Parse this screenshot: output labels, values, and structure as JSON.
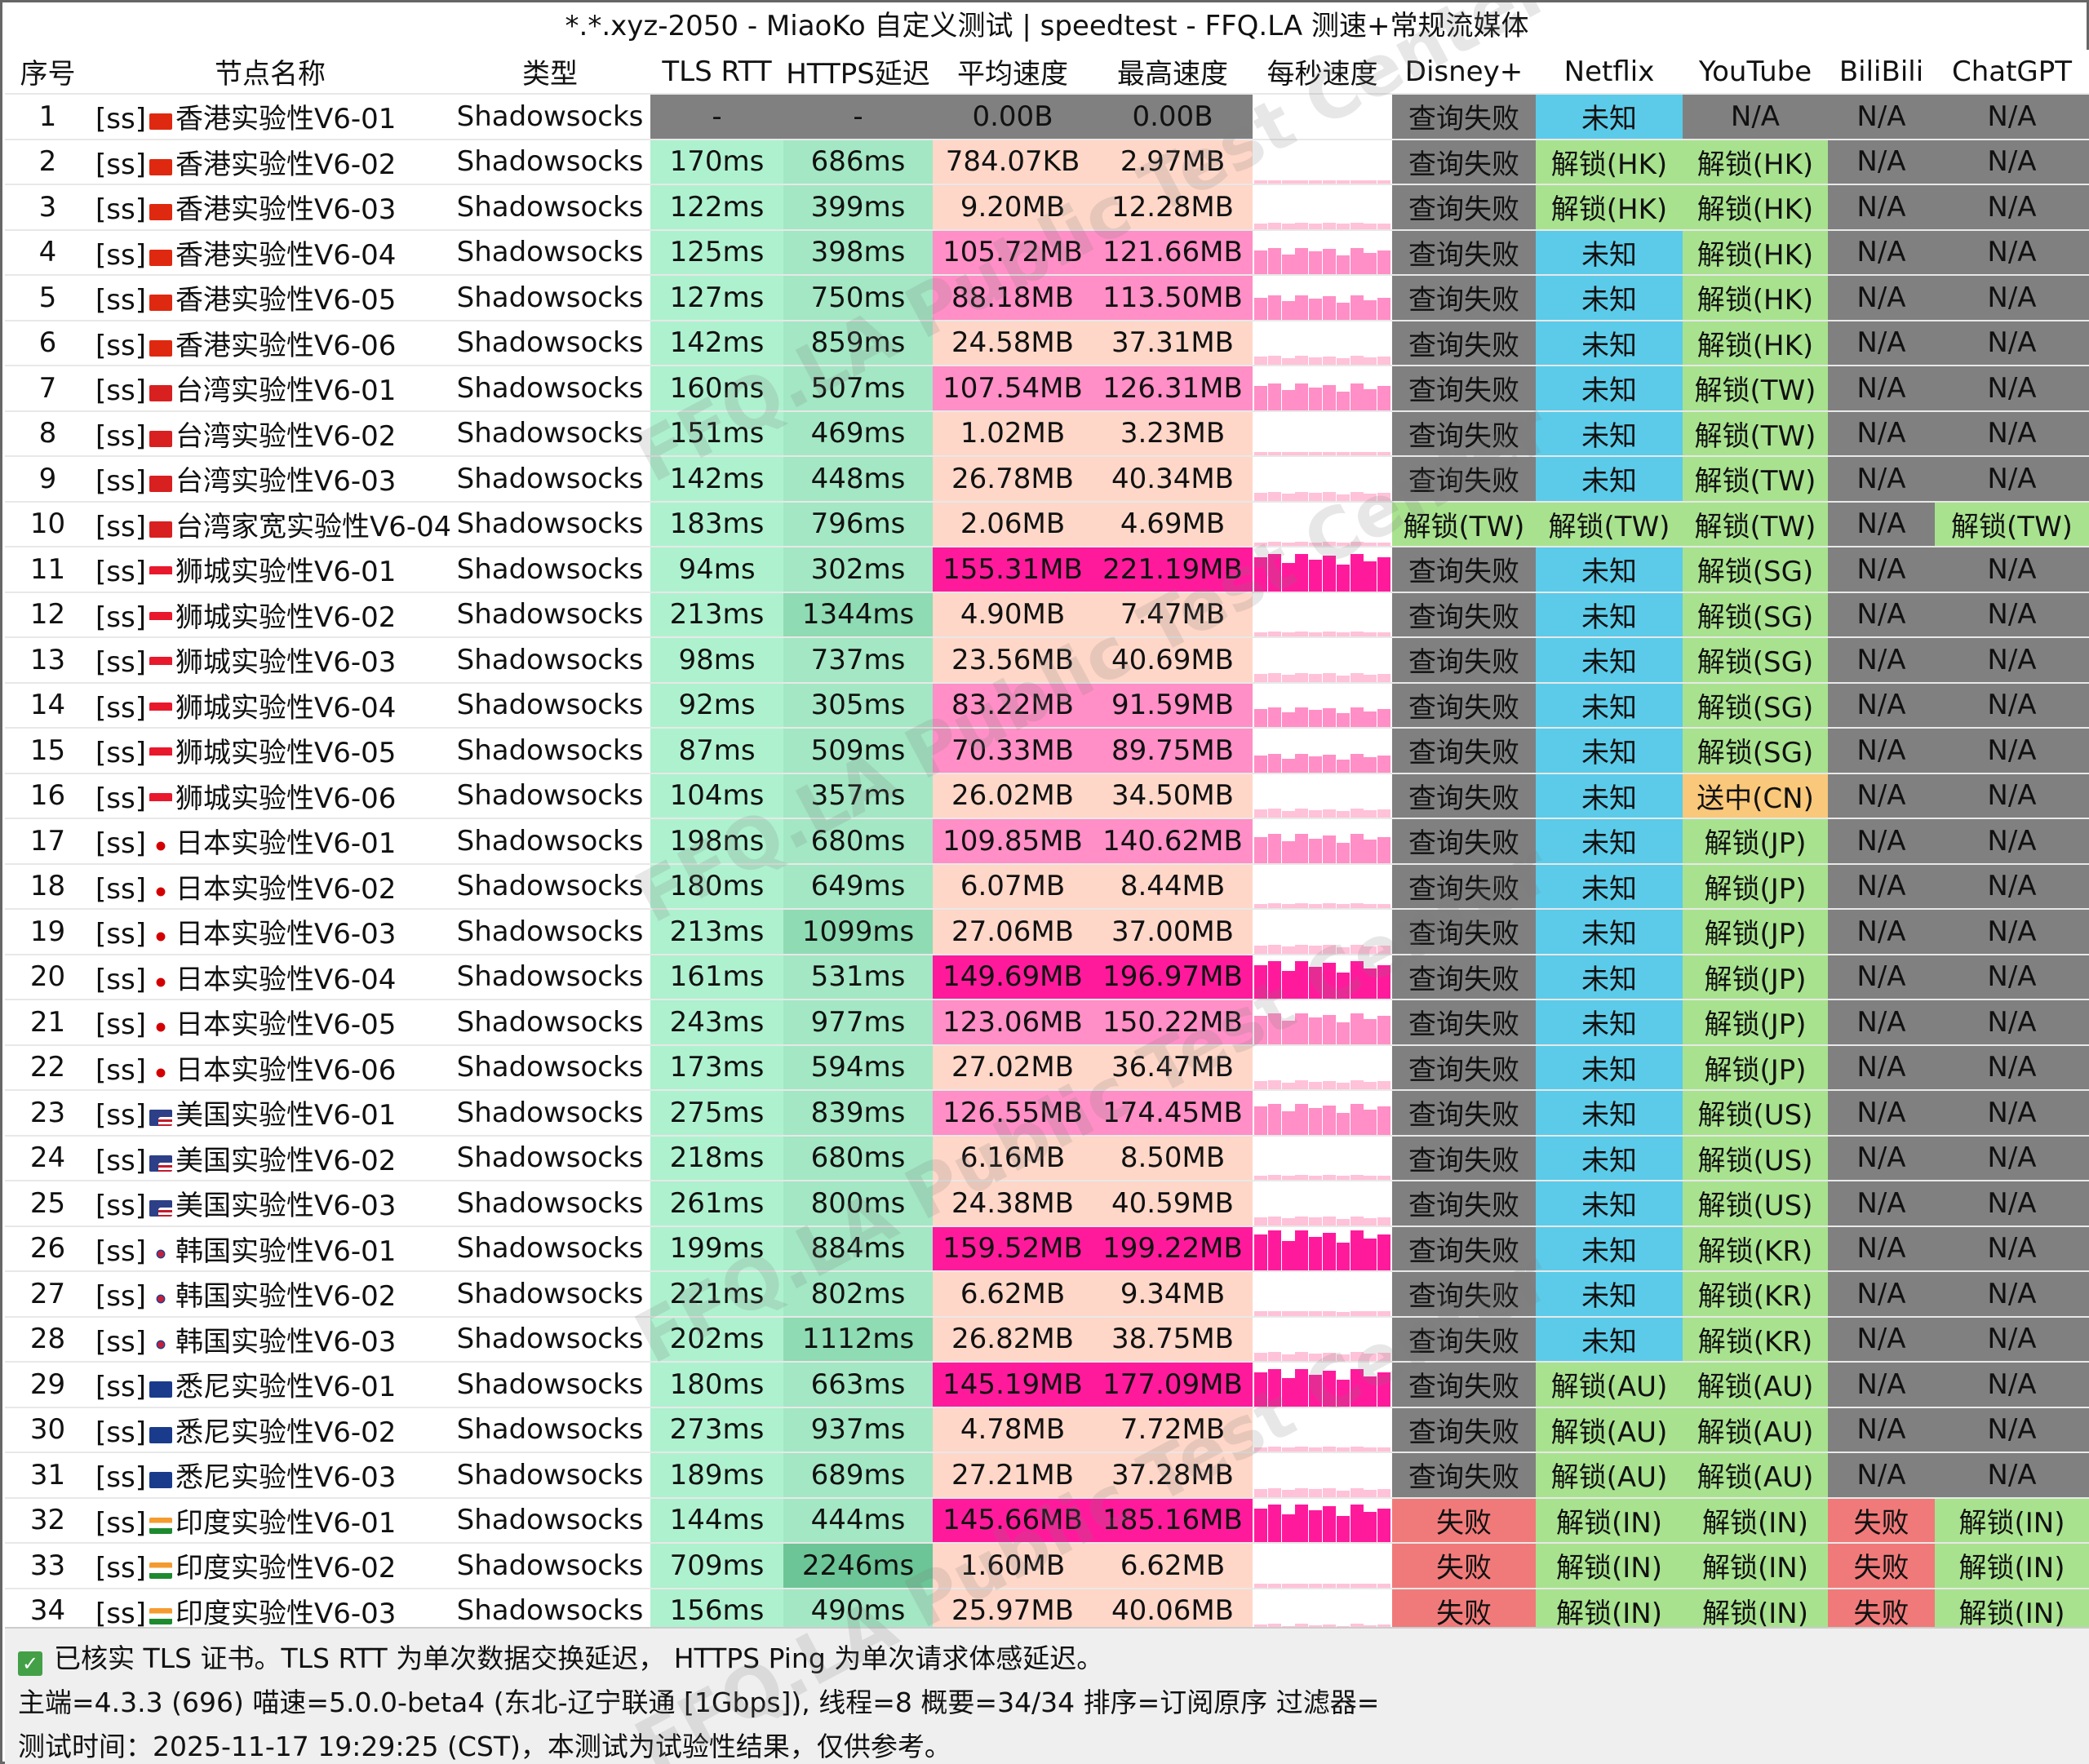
{
  "title": "*.*.xyz-2050 - MiaoKo 自定义测试 | speedtest - FFQ.LA 测速+常规流媒体",
  "columns": [
    "序号",
    "节点名称",
    "类型",
    "TLS RTT",
    "HTTPS延迟",
    "平均速度",
    "最高速度",
    "每秒速度",
    "Disney+",
    "Netflix",
    "YouTube",
    "BiliBili",
    "ChatGPT"
  ],
  "colors": {
    "gray": "#808080",
    "fail": "#f07a7a",
    "unlock": "#a8e28e",
    "unknown": "#5bcbe9",
    "sent": "#f9c87a",
    "tls": "#aef1cf",
    "https_light": "#a3e7c4",
    "https_mid": "#8fdbb3",
    "https_dark": "#6cc596",
    "speed_light": "#ffd7c8",
    "speed_mid": "#ff8fc6",
    "speed_hot": "#ff1a9c"
  },
  "rows": [
    {
      "no": "1",
      "proto": "[ss]",
      "flag": "hk",
      "name": "香港实验性V6-01",
      "type": "Shadowsocks",
      "tls": "-",
      "https": "-",
      "avg": "0.00B",
      "max": "0.00B",
      "disney": "查询失败",
      "netflix": "未知",
      "youtube": "N/A",
      "bili": "N/A",
      "gpt": "N/A",
      "level": 0
    },
    {
      "no": "2",
      "proto": "[ss]",
      "flag": "hk",
      "name": "香港实验性V6-02",
      "type": "Shadowsocks",
      "tls": "170ms",
      "https": "686ms",
      "avg": "784.07KB",
      "max": "2.97MB",
      "disney": "查询失败",
      "netflix": "解锁(HK)",
      "youtube": "解锁(HK)",
      "bili": "N/A",
      "gpt": "N/A",
      "level": 0.02
    },
    {
      "no": "3",
      "proto": "[ss]",
      "flag": "hk",
      "name": "香港实验性V6-03",
      "type": "Shadowsocks",
      "tls": "122ms",
      "https": "399ms",
      "avg": "9.20MB",
      "max": "12.28MB",
      "disney": "查询失败",
      "netflix": "解锁(HK)",
      "youtube": "解锁(HK)",
      "bili": "N/A",
      "gpt": "N/A",
      "level": 0.08
    },
    {
      "no": "4",
      "proto": "[ss]",
      "flag": "hk",
      "name": "香港实验性V6-04",
      "type": "Shadowsocks",
      "tls": "125ms",
      "https": "398ms",
      "avg": "105.72MB",
      "max": "121.66MB",
      "disney": "查询失败",
      "netflix": "未知",
      "youtube": "解锁(HK)",
      "bili": "N/A",
      "gpt": "N/A",
      "level": 0.6
    },
    {
      "no": "5",
      "proto": "[ss]",
      "flag": "hk",
      "name": "香港实验性V6-05",
      "type": "Shadowsocks",
      "tls": "127ms",
      "https": "750ms",
      "avg": "88.18MB",
      "max": "113.50MB",
      "disney": "查询失败",
      "netflix": "未知",
      "youtube": "解锁(HK)",
      "bili": "N/A",
      "gpt": "N/A",
      "level": 0.55
    },
    {
      "no": "6",
      "proto": "[ss]",
      "flag": "hk",
      "name": "香港实验性V6-06",
      "type": "Shadowsocks",
      "tls": "142ms",
      "https": "859ms",
      "avg": "24.58MB",
      "max": "37.31MB",
      "disney": "查询失败",
      "netflix": "未知",
      "youtube": "解锁(HK)",
      "bili": "N/A",
      "gpt": "N/A",
      "level": 0.2
    },
    {
      "no": "7",
      "proto": "[ss]",
      "flag": "tw",
      "name": "台湾实验性V6-01",
      "type": "Shadowsocks",
      "tls": "160ms",
      "https": "507ms",
      "avg": "107.54MB",
      "max": "126.31MB",
      "disney": "查询失败",
      "netflix": "未知",
      "youtube": "解锁(TW)",
      "bili": "N/A",
      "gpt": "N/A",
      "level": 0.6
    },
    {
      "no": "8",
      "proto": "[ss]",
      "flag": "tw",
      "name": "台湾实验性V6-02",
      "type": "Shadowsocks",
      "tls": "151ms",
      "https": "469ms",
      "avg": "1.02MB",
      "max": "3.23MB",
      "disney": "查询失败",
      "netflix": "未知",
      "youtube": "解锁(TW)",
      "bili": "N/A",
      "gpt": "N/A",
      "level": 0.02
    },
    {
      "no": "9",
      "proto": "[ss]",
      "flag": "tw",
      "name": "台湾实验性V6-03",
      "type": "Shadowsocks",
      "tls": "142ms",
      "https": "448ms",
      "avg": "26.78MB",
      "max": "40.34MB",
      "disney": "查询失败",
      "netflix": "未知",
      "youtube": "解锁(TW)",
      "bili": "N/A",
      "gpt": "N/A",
      "level": 0.2
    },
    {
      "no": "10",
      "proto": "[ss]",
      "flag": "tw",
      "name": "台湾家宽实验性V6-04",
      "type": "Shadowsocks",
      "tls": "183ms",
      "https": "796ms",
      "avg": "2.06MB",
      "max": "4.69MB",
      "disney": "解锁(TW)",
      "netflix": "解锁(TW)",
      "youtube": "解锁(TW)",
      "bili": "N/A",
      "gpt": "解锁(TW)",
      "level": 0.03
    },
    {
      "no": "11",
      "proto": "[ss]",
      "flag": "sg",
      "name": "狮城实验性V6-01",
      "type": "Shadowsocks",
      "tls": "94ms",
      "https": "302ms",
      "avg": "155.31MB",
      "max": "221.19MB",
      "disney": "查询失败",
      "netflix": "未知",
      "youtube": "解锁(SG)",
      "bili": "N/A",
      "gpt": "N/A",
      "level": 0.85
    },
    {
      "no": "12",
      "proto": "[ss]",
      "flag": "sg",
      "name": "狮城实验性V6-02",
      "type": "Shadowsocks",
      "tls": "213ms",
      "https": "1344ms",
      "avg": "4.90MB",
      "max": "7.47MB",
      "disney": "查询失败",
      "netflix": "未知",
      "youtube": "解锁(SG)",
      "bili": "N/A",
      "gpt": "N/A",
      "level": 0.05
    },
    {
      "no": "13",
      "proto": "[ss]",
      "flag": "sg",
      "name": "狮城实验性V6-03",
      "type": "Shadowsocks",
      "tls": "98ms",
      "https": "737ms",
      "avg": "23.56MB",
      "max": "40.69MB",
      "disney": "查询失败",
      "netflix": "未知",
      "youtube": "解锁(SG)",
      "bili": "N/A",
      "gpt": "N/A",
      "level": 0.2
    },
    {
      "no": "14",
      "proto": "[ss]",
      "flag": "sg",
      "name": "狮城实验性V6-04",
      "type": "Shadowsocks",
      "tls": "92ms",
      "https": "305ms",
      "avg": "83.22MB",
      "max": "91.59MB",
      "disney": "查询失败",
      "netflix": "未知",
      "youtube": "解锁(SG)",
      "bili": "N/A",
      "gpt": "N/A",
      "level": 0.45
    },
    {
      "no": "15",
      "proto": "[ss]",
      "flag": "sg",
      "name": "狮城实验性V6-05",
      "type": "Shadowsocks",
      "tls": "87ms",
      "https": "509ms",
      "avg": "70.33MB",
      "max": "89.75MB",
      "disney": "查询失败",
      "netflix": "未知",
      "youtube": "解锁(SG)",
      "bili": "N/A",
      "gpt": "N/A",
      "level": 0.42
    },
    {
      "no": "16",
      "proto": "[ss]",
      "flag": "sg",
      "name": "狮城实验性V6-06",
      "type": "Shadowsocks",
      "tls": "104ms",
      "https": "357ms",
      "avg": "26.02MB",
      "max": "34.50MB",
      "disney": "查询失败",
      "netflix": "未知",
      "youtube": "送中(CN)",
      "bili": "N/A",
      "gpt": "N/A",
      "level": 0.2
    },
    {
      "no": "17",
      "proto": "[ss]",
      "flag": "jp",
      "name": "日本实验性V6-01",
      "type": "Shadowsocks",
      "tls": "198ms",
      "https": "680ms",
      "avg": "109.85MB",
      "max": "140.62MB",
      "disney": "查询失败",
      "netflix": "未知",
      "youtube": "解锁(JP)",
      "bili": "N/A",
      "gpt": "N/A",
      "level": 0.65
    },
    {
      "no": "18",
      "proto": "[ss]",
      "flag": "jp",
      "name": "日本实验性V6-02",
      "type": "Shadowsocks",
      "tls": "180ms",
      "https": "649ms",
      "avg": "6.07MB",
      "max": "8.44MB",
      "disney": "查询失败",
      "netflix": "未知",
      "youtube": "解锁(JP)",
      "bili": "N/A",
      "gpt": "N/A",
      "level": 0.05
    },
    {
      "no": "19",
      "proto": "[ss]",
      "flag": "jp",
      "name": "日本实验性V6-03",
      "type": "Shadowsocks",
      "tls": "213ms",
      "https": "1099ms",
      "avg": "27.06MB",
      "max": "37.00MB",
      "disney": "查询失败",
      "netflix": "未知",
      "youtube": "解锁(JP)",
      "bili": "N/A",
      "gpt": "N/A",
      "level": 0.2
    },
    {
      "no": "20",
      "proto": "[ss]",
      "flag": "jp",
      "name": "日本实验性V6-04",
      "type": "Shadowsocks",
      "tls": "161ms",
      "https": "531ms",
      "avg": "149.69MB",
      "max": "196.97MB",
      "disney": "查询失败",
      "netflix": "未知",
      "youtube": "解锁(JP)",
      "bili": "N/A",
      "gpt": "N/A",
      "level": 0.85
    },
    {
      "no": "21",
      "proto": "[ss]",
      "flag": "jp",
      "name": "日本实验性V6-05",
      "type": "Shadowsocks",
      "tls": "243ms",
      "https": "977ms",
      "avg": "123.06MB",
      "max": "150.22MB",
      "disney": "查询失败",
      "netflix": "未知",
      "youtube": "解锁(JP)",
      "bili": "N/A",
      "gpt": "N/A",
      "level": 0.7
    },
    {
      "no": "22",
      "proto": "[ss]",
      "flag": "jp",
      "name": "日本实验性V6-06",
      "type": "Shadowsocks",
      "tls": "173ms",
      "https": "594ms",
      "avg": "27.02MB",
      "max": "36.47MB",
      "disney": "查询失败",
      "netflix": "未知",
      "youtube": "解锁(JP)",
      "bili": "N/A",
      "gpt": "N/A",
      "level": 0.2
    },
    {
      "no": "23",
      "proto": "[ss]",
      "flag": "us",
      "name": "美国实验性V6-01",
      "type": "Shadowsocks",
      "tls": "275ms",
      "https": "839ms",
      "avg": "126.55MB",
      "max": "174.45MB",
      "disney": "查询失败",
      "netflix": "未知",
      "youtube": "解锁(US)",
      "bili": "N/A",
      "gpt": "N/A",
      "level": 0.7
    },
    {
      "no": "24",
      "proto": "[ss]",
      "flag": "us",
      "name": "美国实验性V6-02",
      "type": "Shadowsocks",
      "tls": "218ms",
      "https": "680ms",
      "avg": "6.16MB",
      "max": "8.50MB",
      "disney": "查询失败",
      "netflix": "未知",
      "youtube": "解锁(US)",
      "bili": "N/A",
      "gpt": "N/A",
      "level": 0.05
    },
    {
      "no": "25",
      "proto": "[ss]",
      "flag": "us",
      "name": "美国实验性V6-03",
      "type": "Shadowsocks",
      "tls": "261ms",
      "https": "800ms",
      "avg": "24.38MB",
      "max": "40.59MB",
      "disney": "查询失败",
      "netflix": "未知",
      "youtube": "解锁(US)",
      "bili": "N/A",
      "gpt": "N/A",
      "level": 0.2
    },
    {
      "no": "26",
      "proto": "[ss]",
      "flag": "kr",
      "name": "韩国实验性V6-01",
      "type": "Shadowsocks",
      "tls": "199ms",
      "https": "884ms",
      "avg": "159.52MB",
      "max": "199.22MB",
      "disney": "查询失败",
      "netflix": "未知",
      "youtube": "解锁(KR)",
      "bili": "N/A",
      "gpt": "N/A",
      "level": 0.9
    },
    {
      "no": "27",
      "proto": "[ss]",
      "flag": "kr",
      "name": "韩国实验性V6-02",
      "type": "Shadowsocks",
      "tls": "221ms",
      "https": "802ms",
      "avg": "6.62MB",
      "max": "9.34MB",
      "disney": "查询失败",
      "netflix": "未知",
      "youtube": "解锁(KR)",
      "bili": "N/A",
      "gpt": "N/A",
      "level": 0.05
    },
    {
      "no": "28",
      "proto": "[ss]",
      "flag": "kr",
      "name": "韩国实验性V6-03",
      "type": "Shadowsocks",
      "tls": "202ms",
      "https": "1112ms",
      "avg": "26.82MB",
      "max": "38.75MB",
      "disney": "查询失败",
      "netflix": "未知",
      "youtube": "解锁(KR)",
      "bili": "N/A",
      "gpt": "N/A",
      "level": 0.2
    },
    {
      "no": "29",
      "proto": "[ss]",
      "flag": "au",
      "name": "悉尼实验性V6-01",
      "type": "Shadowsocks",
      "tls": "180ms",
      "https": "663ms",
      "avg": "145.19MB",
      "max": "177.09MB",
      "disney": "查询失败",
      "netflix": "解锁(AU)",
      "youtube": "解锁(AU)",
      "bili": "N/A",
      "gpt": "N/A",
      "level": 0.85
    },
    {
      "no": "30",
      "proto": "[ss]",
      "flag": "au",
      "name": "悉尼实验性V6-02",
      "type": "Shadowsocks",
      "tls": "273ms",
      "https": "937ms",
      "avg": "4.78MB",
      "max": "7.72MB",
      "disney": "查询失败",
      "netflix": "解锁(AU)",
      "youtube": "解锁(AU)",
      "bili": "N/A",
      "gpt": "N/A",
      "level": 0.05
    },
    {
      "no": "31",
      "proto": "[ss]",
      "flag": "au",
      "name": "悉尼实验性V6-03",
      "type": "Shadowsocks",
      "tls": "189ms",
      "https": "689ms",
      "avg": "27.21MB",
      "max": "37.28MB",
      "disney": "查询失败",
      "netflix": "解锁(AU)",
      "youtube": "解锁(AU)",
      "bili": "N/A",
      "gpt": "N/A",
      "level": 0.2
    },
    {
      "no": "32",
      "proto": "[ss]",
      "flag": "in",
      "name": "印度实验性V6-01",
      "type": "Shadowsocks",
      "tls": "144ms",
      "https": "444ms",
      "avg": "145.66MB",
      "max": "185.16MB",
      "disney": "失败",
      "netflix": "解锁(IN)",
      "youtube": "解锁(IN)",
      "bili": "失败",
      "gpt": "解锁(IN)",
      "level": 0.85
    },
    {
      "no": "33",
      "proto": "[ss]",
      "flag": "in",
      "name": "印度实验性V6-02",
      "type": "Shadowsocks",
      "tls": "709ms",
      "https": "2246ms",
      "avg": "1.60MB",
      "max": "6.62MB",
      "disney": "失败",
      "netflix": "解锁(IN)",
      "youtube": "解锁(IN)",
      "bili": "失败",
      "gpt": "解锁(IN)",
      "level": 0.03
    },
    {
      "no": "34",
      "proto": "[ss]",
      "flag": "in",
      "name": "印度实验性V6-03",
      "type": "Shadowsocks",
      "tls": "156ms",
      "https": "490ms",
      "avg": "25.97MB",
      "max": "40.06MB",
      "disney": "失败",
      "netflix": "解锁(IN)",
      "youtube": "解锁(IN)",
      "bili": "失败",
      "gpt": "解锁(IN)",
      "level": 0.2
    }
  ],
  "footer": {
    "line1": "已核实 TLS 证书。TLS RTT 为单次数据交换延迟， HTTPS Ping 为单次请求体感延迟。",
    "line2": "主端=4.3.3 (696) 喵速=5.0.0-beta4 (东北-辽宁联通 [1Gbps]), 线程=8 概要=34/34 排序=订阅原序 过滤器=",
    "line3": "测试时间：2025-11-17 19:29:25 (CST)，本测试为试验性结果，仅供参考。"
  },
  "watermark": "FFQ.LA Public Test Center"
}
